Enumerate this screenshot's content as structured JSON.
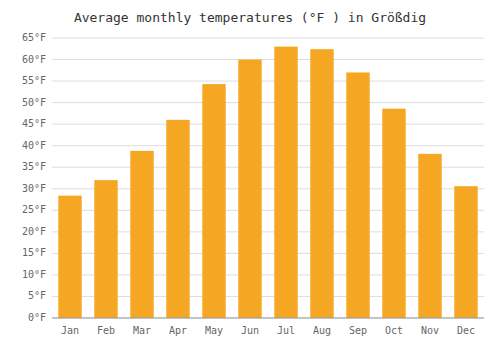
{
  "chart_data": {
    "type": "bar",
    "title": "Average monthly temperatures (°F ) in Größdig",
    "categories": [
      "Jan",
      "Feb",
      "Mar",
      "Apr",
      "May",
      "Jun",
      "Jul",
      "Aug",
      "Sep",
      "Oct",
      "Nov",
      "Dec"
    ],
    "values": [
      28.4,
      32.0,
      38.8,
      46.0,
      54.3,
      60.0,
      63.0,
      62.4,
      57.0,
      48.6,
      38.1,
      30.6
    ],
    "color": "#F5A623",
    "ylim": [
      0,
      65
    ],
    "yticks": [
      {
        "value": 0,
        "label": "0°F"
      },
      {
        "value": 5,
        "label": "5°F"
      },
      {
        "value": 10,
        "label": "10°F"
      },
      {
        "value": 15,
        "label": "15°F"
      },
      {
        "value": 20,
        "label": "20°F"
      },
      {
        "value": 25,
        "label": "25°F"
      },
      {
        "value": 30,
        "label": "30°F"
      },
      {
        "value": 35,
        "label": "35°F"
      },
      {
        "value": 40,
        "label": "40°F"
      },
      {
        "value": 45,
        "label": "45°F"
      },
      {
        "value": 50,
        "label": "50°F"
      },
      {
        "value": 55,
        "label": "55°F"
      },
      {
        "value": 60,
        "label": "60°F"
      },
      {
        "value": 65,
        "label": "65°F"
      }
    ],
    "grid": true
  }
}
